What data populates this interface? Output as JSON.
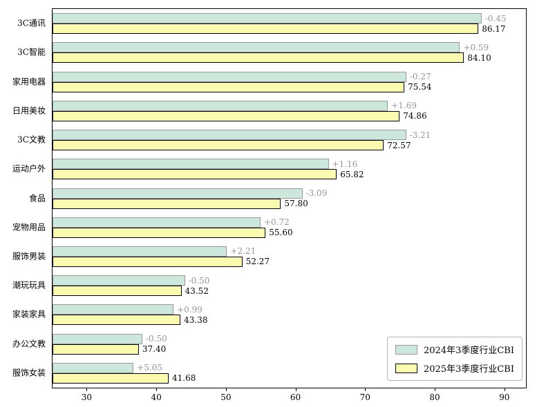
{
  "chart_data": {
    "type": "bar",
    "orientation": "horizontal",
    "title": "",
    "xlabel": "",
    "ylabel": "",
    "grid": false,
    "legend_position": "lower right",
    "xlim": [
      25,
      93
    ],
    "xticks": [
      "30",
      "40",
      "50",
      "60",
      "70",
      "80",
      "90"
    ],
    "categories": [
      "3C通讯",
      "3C智能",
      "家用电器",
      "日用美妆",
      "3C文教",
      "运动户外",
      "食品",
      "宠物用品",
      "服饰男装",
      "潮玩玩具",
      "家装家具",
      "办公文教",
      "服饰女装"
    ],
    "series": [
      {
        "name": "2024年3季度行业CBI",
        "color": "#cce8dd",
        "edge_color": "#999999",
        "values": [
          86.62,
          83.51,
          75.81,
          73.17,
          75.78,
          64.66,
          60.89,
          54.88,
          50.06,
          44.02,
          42.39,
          37.9,
          36.63
        ]
      },
      {
        "name": "2025年3季度行业CBI",
        "color": "#fbfbb0",
        "edge_color": "#000000",
        "values": [
          86.17,
          84.1,
          75.54,
          74.86,
          72.57,
          65.82,
          57.8,
          55.6,
          52.27,
          43.52,
          43.38,
          37.4,
          41.68
        ]
      }
    ],
    "diff_labels": [
      "-0.45",
      "+0.59",
      "-0.27",
      "+1.69",
      "-3.21",
      "+1.16",
      "-3.09",
      "+0.72",
      "+2.21",
      "-0.50",
      "+0.99",
      "-0.50",
      "+5.05"
    ],
    "value_labels": [
      "86.17",
      "84.10",
      "75.54",
      "74.86",
      "72.57",
      "65.82",
      "57.80",
      "55.60",
      "52.27",
      "43.52",
      "43.38",
      "37.40",
      "41.68"
    ],
    "diff_label_color": "#969696",
    "value_label_color": "#000000"
  }
}
